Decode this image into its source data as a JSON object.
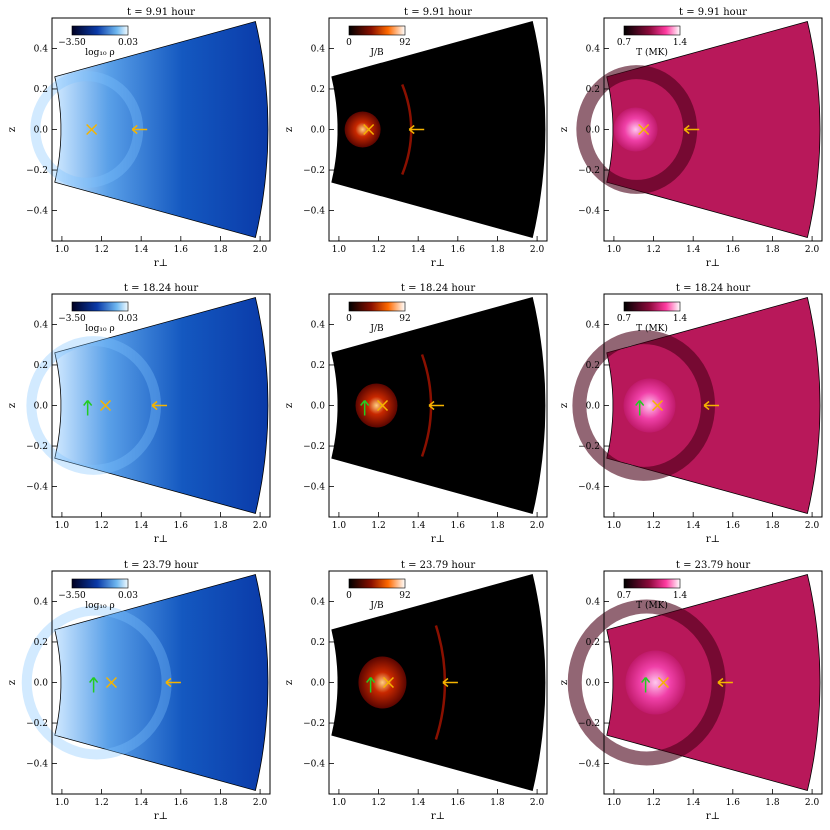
{
  "figure": {
    "row_titles": [
      "t = 9.91 hour",
      "t = 18.24 hour",
      "t = 23.79 hour"
    ],
    "columns": [
      {
        "id": "density",
        "colorbar": {
          "min_label": "−3.50",
          "max_label": "0.03",
          "label": "log₁₀ ρ",
          "colormap": "blue-white"
        }
      },
      {
        "id": "current",
        "colorbar": {
          "min_label": "0",
          "max_label": "92",
          "label": "J/B",
          "colormap": "black-red-white"
        }
      },
      {
        "id": "temperature",
        "colorbar": {
          "min_label": "0.7",
          "max_label": "1.4",
          "label": "T (MK)",
          "colormap": "black-pink-white"
        }
      }
    ],
    "x_axis": {
      "label": "r⊥",
      "ticks": [
        "1.0",
        "1.2",
        "1.4",
        "1.6",
        "1.8",
        "2.0"
      ]
    },
    "y_axis": {
      "label": "z",
      "ticks": [
        "0.4",
        "0.2",
        "0.0",
        "−0.2",
        "−0.4"
      ]
    },
    "markers": {
      "cross_color": "#f5b400",
      "arrow_color": "#f5b400",
      "green_arrow_color": "#22cc22",
      "rows": [
        {
          "cross_r": 1.15,
          "front_r": 1.38,
          "green_r": null
        },
        {
          "cross_r": 1.22,
          "front_r": 1.48,
          "green_r": 1.13
        },
        {
          "cross_r": 1.25,
          "front_r": 1.55,
          "green_r": 1.16
        }
      ]
    }
  }
}
